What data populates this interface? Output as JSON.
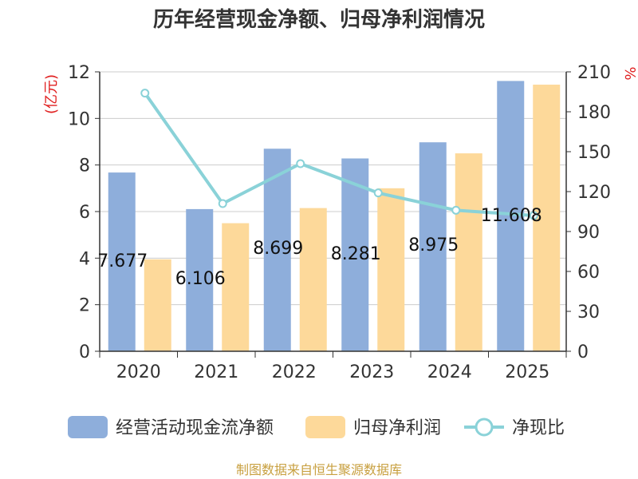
{
  "chart_data": {
    "type": "bar",
    "title": "历年经营现金净额、归母净利润情况",
    "categories": [
      "2020",
      "2021",
      "2022",
      "2023",
      "2024",
      "2025"
    ],
    "series": [
      {
        "name": "经营活动现金流净额",
        "type": "bar",
        "axis": "left",
        "color": "#8eaedb",
        "values": [
          7.677,
          6.106,
          8.699,
          8.281,
          8.975,
          11.608
        ]
      },
      {
        "name": "归母净利润",
        "type": "bar",
        "axis": "left",
        "color": "#fdd99a",
        "values": [
          3.95,
          5.5,
          6.15,
          7.0,
          8.5,
          11.45
        ]
      },
      {
        "name": "净现比",
        "type": "line",
        "axis": "right",
        "color": "#8ad2d8",
        "values": [
          194,
          111,
          141,
          119,
          106,
          102
        ]
      }
    ],
    "data_labels": [
      "7.677",
      "6.106",
      "8.699",
      "8.281",
      "8.975",
      "11.608"
    ],
    "left_axis": {
      "unit": "(亿元)",
      "ylim": [
        0,
        12
      ],
      "ticks": [
        0,
        2,
        4,
        6,
        8,
        10,
        12
      ]
    },
    "right_axis": {
      "unit": "%",
      "ylim": [
        0,
        210
      ],
      "ticks": [
        0,
        30,
        60,
        90,
        120,
        150,
        180,
        210
      ]
    },
    "grid": true,
    "legend_position": "bottom",
    "source": "制图数据来自恒生聚源数据库"
  }
}
